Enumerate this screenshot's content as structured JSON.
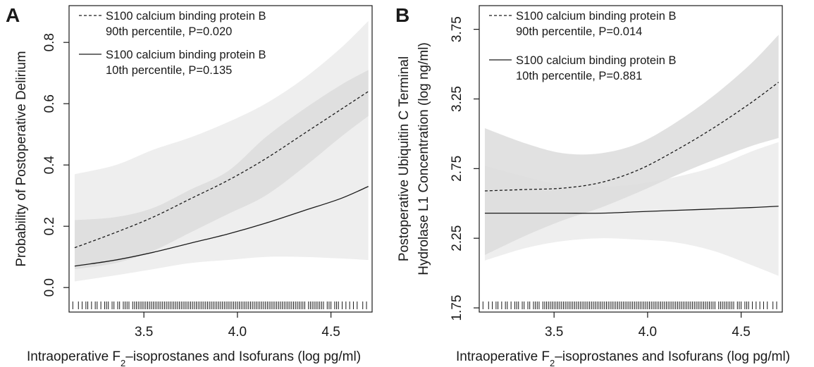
{
  "chart_data": [
    {
      "type": "line",
      "panel_label": "A",
      "xlabel": "Intraoperative F₂–isoprostanes and Isofurans (log pg/ml)",
      "ylabel": [
        "Probability of Postoperative Delirium"
      ],
      "xlim": [
        3.1,
        4.72
      ],
      "ylim": [
        -0.08,
        0.92
      ],
      "xticks": [
        3.5,
        4.0,
        4.5
      ],
      "xtick_labels": [
        "3.5",
        "4.0",
        "4.5"
      ],
      "yticks": [
        0.0,
        0.2,
        0.4,
        0.6,
        0.8
      ],
      "ytick_labels": [
        "0.0",
        "0.2",
        "0.4",
        "0.6",
        "0.8"
      ],
      "grid": false,
      "legend_position": "top-left",
      "x": [
        3.13,
        3.35,
        3.55,
        3.75,
        3.95,
        4.15,
        4.35,
        4.55,
        4.7
      ],
      "series": [
        {
          "name": "S100 calcium binding protein B 90th percentile, P=0.020",
          "legend_lines": [
            "S100 calcium binding protein B",
            "90th percentile, P=0.020"
          ],
          "line_style": "dashed",
          "values": [
            0.13,
            0.18,
            0.23,
            0.29,
            0.35,
            0.42,
            0.5,
            0.58,
            0.64
          ],
          "ci_lower": [
            0.06,
            0.08,
            0.12,
            0.18,
            0.24,
            0.3,
            0.39,
            0.49,
            0.56
          ],
          "ci_upper": [
            0.22,
            0.23,
            0.26,
            0.32,
            0.38,
            0.49,
            0.58,
            0.66,
            0.71
          ]
        },
        {
          "name": "S100 calcium binding protein B 10th percentile, P=0.135",
          "legend_lines": [
            "S100 calcium binding protein B",
            "10th percentile, P=0.135"
          ],
          "line_style": "solid",
          "values": [
            0.07,
            0.09,
            0.115,
            0.145,
            0.175,
            0.21,
            0.25,
            0.29,
            0.33
          ],
          "ci_lower": [
            0.02,
            0.04,
            0.06,
            0.08,
            0.09,
            0.1,
            0.1,
            0.095,
            0.09
          ],
          "ci_upper": [
            0.37,
            0.4,
            0.45,
            0.49,
            0.54,
            0.6,
            0.68,
            0.78,
            0.87
          ]
        }
      ],
      "rug": [
        3.12,
        3.15,
        3.17,
        3.19,
        3.2,
        3.22,
        3.24,
        3.25,
        3.27,
        3.29,
        3.3,
        3.31,
        3.33,
        3.34,
        3.36,
        3.37,
        3.39,
        3.4,
        3.41,
        3.42,
        3.44,
        3.45,
        3.46,
        3.47,
        3.48,
        3.49,
        3.5,
        3.51,
        3.52,
        3.53,
        3.54,
        3.55,
        3.56,
        3.57,
        3.58,
        3.59,
        3.6,
        3.61,
        3.62,
        3.63,
        3.64,
        3.65,
        3.66,
        3.67,
        3.68,
        3.69,
        3.7,
        3.71,
        3.72,
        3.73,
        3.74,
        3.75,
        3.76,
        3.77,
        3.78,
        3.79,
        3.8,
        3.81,
        3.82,
        3.83,
        3.84,
        3.85,
        3.86,
        3.87,
        3.88,
        3.89,
        3.9,
        3.91,
        3.92,
        3.93,
        3.94,
        3.95,
        3.96,
        3.97,
        3.98,
        3.99,
        4.0,
        4.01,
        4.02,
        4.03,
        4.04,
        4.05,
        4.06,
        4.07,
        4.08,
        4.09,
        4.1,
        4.11,
        4.12,
        4.13,
        4.14,
        4.15,
        4.16,
        4.17,
        4.18,
        4.19,
        4.2,
        4.21,
        4.22,
        4.23,
        4.24,
        4.25,
        4.26,
        4.27,
        4.28,
        4.29,
        4.3,
        4.31,
        4.32,
        4.33,
        4.34,
        4.35,
        4.36,
        4.38,
        4.39,
        4.4,
        4.41,
        4.42,
        4.43,
        4.44,
        4.45,
        4.46,
        4.48,
        4.49,
        4.5,
        4.52,
        4.53,
        4.54,
        4.56,
        4.58,
        4.6,
        4.62,
        4.64,
        4.67,
        4.69
      ]
    },
    {
      "type": "line",
      "panel_label": "B",
      "xlabel": "Intraoperative F₂–isoprostanes and Isofurans (log pg/ml)",
      "ylabel": [
        "Postoperative Ubiquitin C Terminal",
        "Hydrolase L1 Concentration (log ng/ml)"
      ],
      "xlim": [
        3.1,
        4.72
      ],
      "ylim": [
        1.72,
        3.92
      ],
      "xticks": [
        3.5,
        4.0,
        4.5
      ],
      "xtick_labels": [
        "3.5",
        "4.0",
        "4.5"
      ],
      "yticks": [
        1.75,
        2.25,
        2.75,
        3.25,
        3.75
      ],
      "ytick_labels": [
        "1.75",
        "2.25",
        "2.75",
        "3.25",
        "3.75"
      ],
      "grid": false,
      "legend_position": "top-left",
      "x": [
        3.13,
        3.35,
        3.55,
        3.75,
        3.95,
        4.15,
        4.35,
        4.55,
        4.7
      ],
      "series": [
        {
          "name": "S100 calcium binding protein B 90th percentile, P=0.014",
          "legend_lines": [
            "S100 calcium binding protein B",
            "90th percentile, P=0.014"
          ],
          "line_style": "dashed",
          "values": [
            2.59,
            2.6,
            2.61,
            2.65,
            2.74,
            2.88,
            3.04,
            3.22,
            3.37
          ],
          "ci_lower": [
            2.13,
            2.27,
            2.38,
            2.47,
            2.58,
            2.7,
            2.81,
            2.91,
            2.97
          ],
          "ci_upper": [
            3.04,
            2.93,
            2.86,
            2.86,
            2.93,
            3.08,
            3.27,
            3.5,
            3.71
          ]
        },
        {
          "name": "S100 calcium binding protein B 10th percentile, P=0.881",
          "legend_lines": [
            "S100 calcium binding protein B",
            "10th percentile, P=0.881"
          ],
          "line_style": "solid",
          "values": [
            2.43,
            2.43,
            2.43,
            2.43,
            2.44,
            2.45,
            2.46,
            2.47,
            2.48
          ],
          "ci_lower": [
            2.09,
            2.18,
            2.23,
            2.25,
            2.24,
            2.22,
            2.16,
            2.06,
            1.98
          ],
          "ci_upper": [
            2.77,
            2.69,
            2.63,
            2.62,
            2.64,
            2.69,
            2.76,
            2.87,
            2.94
          ]
        }
      ],
      "rug": [
        3.12,
        3.15,
        3.17,
        3.19,
        3.2,
        3.22,
        3.24,
        3.25,
        3.27,
        3.29,
        3.3,
        3.31,
        3.33,
        3.34,
        3.36,
        3.37,
        3.39,
        3.4,
        3.41,
        3.42,
        3.44,
        3.45,
        3.46,
        3.47,
        3.48,
        3.49,
        3.5,
        3.51,
        3.52,
        3.53,
        3.54,
        3.55,
        3.56,
        3.57,
        3.58,
        3.59,
        3.6,
        3.61,
        3.62,
        3.63,
        3.64,
        3.65,
        3.66,
        3.67,
        3.68,
        3.69,
        3.7,
        3.71,
        3.72,
        3.73,
        3.74,
        3.75,
        3.76,
        3.77,
        3.78,
        3.79,
        3.8,
        3.81,
        3.82,
        3.83,
        3.84,
        3.85,
        3.86,
        3.87,
        3.88,
        3.89,
        3.9,
        3.91,
        3.92,
        3.93,
        3.94,
        3.95,
        3.96,
        3.97,
        3.98,
        3.99,
        4.0,
        4.01,
        4.02,
        4.03,
        4.04,
        4.05,
        4.06,
        4.07,
        4.08,
        4.09,
        4.1,
        4.11,
        4.12,
        4.13,
        4.14,
        4.15,
        4.16,
        4.17,
        4.18,
        4.19,
        4.2,
        4.21,
        4.22,
        4.23,
        4.24,
        4.25,
        4.26,
        4.27,
        4.28,
        4.29,
        4.3,
        4.31,
        4.32,
        4.33,
        4.34,
        4.35,
        4.36,
        4.38,
        4.39,
        4.4,
        4.41,
        4.42,
        4.43,
        4.44,
        4.45,
        4.46,
        4.48,
        4.49,
        4.5,
        4.52,
        4.53,
        4.54,
        4.56,
        4.58,
        4.6,
        4.62,
        4.64,
        4.67,
        4.69
      ]
    }
  ],
  "colors": {
    "band_outer": "#eeeeee",
    "band_inner": "#dcdcdc",
    "line": "#1a1a1a",
    "frame": "#1a1a1a"
  }
}
